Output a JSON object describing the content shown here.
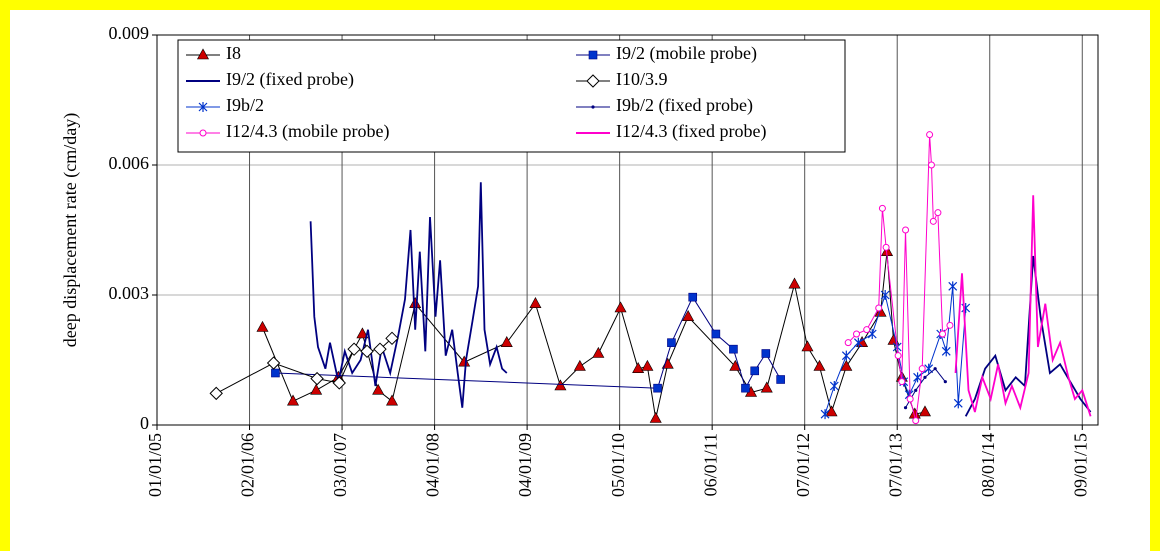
{
  "chart_data": {
    "type": "line",
    "y_label": "deep displacement rate (cm/day)",
    "xlim": [
      2005,
      2015.17
    ],
    "xticks": [
      {
        "value": 2005,
        "label": "01/01/05"
      },
      {
        "value": 2006,
        "label": "02/01/06"
      },
      {
        "value": 2007,
        "label": "03/01/07"
      },
      {
        "value": 2008,
        "label": "04/01/08"
      },
      {
        "value": 2009,
        "label": "04/01/09"
      },
      {
        "value": 2010,
        "label": "05/01/10"
      },
      {
        "value": 2011,
        "label": "06/01/11"
      },
      {
        "value": 2012,
        "label": "07/01/12"
      },
      {
        "value": 2013,
        "label": "07/01/13"
      },
      {
        "value": 2014,
        "label": "08/01/14"
      },
      {
        "value": 2015,
        "label": "09/01/15"
      }
    ],
    "ylim": [
      0,
      0.009
    ],
    "yticks": [
      0,
      0.003,
      0.006,
      0.009
    ],
    "grid": true,
    "legend": "top-left",
    "series": [
      {
        "name": "I8",
        "color": "#cc0000",
        "line_color": "#000000",
        "marker": "triangle",
        "x": [
          2006.14,
          2006.47,
          2006.72,
          2006.96,
          2007.22,
          2007.39,
          2007.54,
          2007.79,
          2008.32,
          2008.78,
          2009.09,
          2009.36,
          2009.57,
          2009.77,
          2010.01,
          2010.2,
          2010.3,
          2010.39,
          2010.52,
          2010.74,
          2011.25,
          2011.42,
          2011.59,
          2011.89,
          2012.03,
          2012.16,
          2012.29,
          2012.45,
          2012.62,
          2012.82,
          2012.89,
          2012.96,
          2013.05,
          2013.19,
          2013.3
        ],
        "values": [
          0.00225,
          0.00055,
          0.0008,
          0.0011,
          0.0021,
          0.0008,
          0.00055,
          0.0028,
          0.00145,
          0.0019,
          0.0028,
          0.0009,
          0.00135,
          0.00165,
          0.0027,
          0.0013,
          0.00135,
          0.00015,
          0.0014,
          0.0025,
          0.00135,
          0.00075,
          0.00085,
          0.00325,
          0.0018,
          0.00135,
          0.0003,
          0.00135,
          0.0019,
          0.0026,
          0.004,
          0.00195,
          0.0011,
          0.00025,
          0.0003
        ]
      },
      {
        "name": "I9/2 (mobile probe)",
        "color": "#0033cc",
        "line_color": "#000080",
        "marker": "square",
        "x": [
          2006.28,
          2010.41,
          2010.56,
          2010.79,
          2011.04,
          2011.23,
          2011.36,
          2011.46,
          2011.58,
          2011.74
        ],
        "values": [
          0.0012,
          0.00085,
          0.0019,
          0.00295,
          0.0021,
          0.00175,
          0.00085,
          0.00125,
          0.00165,
          0.00105
        ]
      },
      {
        "name": "I9/2 (fixed probe)",
        "color": "#000080",
        "line_color": "#000080",
        "marker": "none",
        "x": [
          2006.66,
          2006.7,
          2006.74,
          2006.82,
          2006.87,
          2006.96,
          2007.03,
          2007.11,
          2007.2,
          2007.28,
          2007.36,
          2007.43,
          2007.52,
          2007.61,
          2007.68,
          2007.74,
          2007.79,
          2007.84,
          2007.9,
          2007.95,
          2008.01,
          2008.06,
          2008.12,
          2008.19,
          2008.25,
          2008.3,
          2008.34,
          2008.41,
          2008.47,
          2008.5,
          2008.54,
          2008.6,
          2008.67,
          2008.73,
          2008.78,
          2010.0,
          2013.74,
          2013.84,
          2013.95,
          2014.06,
          2014.17,
          2014.28,
          2014.38,
          2014.47,
          2014.55,
          2014.65,
          2014.76,
          2014.87,
          2014.98,
          2015.09
        ],
        "values": [
          0.0047,
          0.0025,
          0.0018,
          0.0013,
          0.0019,
          0.001,
          0.0017,
          0.0012,
          0.0015,
          0.0022,
          0.0009,
          0.0018,
          0.0012,
          0.0021,
          0.0029,
          0.0045,
          0.0022,
          0.004,
          0.0017,
          0.0048,
          0.0025,
          0.0038,
          0.0016,
          0.0022,
          0.0012,
          0.0004,
          0.0015,
          0.0024,
          0.0032,
          0.0056,
          0.0022,
          0.0014,
          0.0018,
          0.0013,
          0.0012,
          null,
          0.0002,
          0.0006,
          0.0013,
          0.0016,
          0.0008,
          0.0011,
          0.0009,
          0.0039,
          0.0025,
          0.0012,
          0.0014,
          0.001,
          0.0006,
          0.0003
        ]
      },
      {
        "name": "I10/3.9",
        "color": "#ffffff",
        "line_color": "#000000",
        "marker": "diamond",
        "x": [
          2005.64,
          2006.26,
          2006.73,
          2006.97,
          2007.13,
          2007.27,
          2007.41,
          2007.54
        ],
        "values": [
          0.00073,
          0.00143,
          0.00107,
          0.00097,
          0.00175,
          0.0017,
          0.00175,
          0.002
        ]
      },
      {
        "name": "I9b/2",
        "color": "#0033cc",
        "line_color": "#0033cc",
        "marker": "star",
        "x": [
          2012.22,
          2012.32,
          2012.45,
          2012.58,
          2012.73,
          2012.87,
          2013.0,
          2013.07,
          2013.13,
          2013.22,
          2013.34,
          2013.47,
          2013.53,
          2013.6,
          2013.66,
          2013.74
        ],
        "values": [
          0.00025,
          0.0009,
          0.0016,
          0.0019,
          0.0021,
          0.003,
          0.0018,
          0.001,
          0.0007,
          0.0011,
          0.0013,
          0.0021,
          0.0017,
          0.0032,
          0.0005,
          0.0027
        ]
      },
      {
        "name": "I9b/2 (fixed probe)",
        "color": "#000080",
        "line_color": "#000080",
        "marker": "dot",
        "x": [
          2013.09,
          2013.2,
          2013.3,
          2013.41,
          2013.52
        ],
        "values": [
          0.0004,
          0.0008,
          0.0011,
          0.0013,
          0.001
        ]
      },
      {
        "name": "I12/4.3 (mobile probe)",
        "color": "#ff00cc",
        "line_color": "#ff00cc",
        "marker": "circle",
        "x": [
          2012.47,
          2012.56,
          2012.67,
          2012.8,
          2012.84,
          2012.88,
          2013.01,
          2013.05,
          2013.09,
          2013.14,
          2013.2,
          2013.27,
          2013.35,
          2013.37,
          2013.39,
          2013.44,
          2013.49,
          2013.57
        ],
        "values": [
          0.0019,
          0.0021,
          0.0022,
          0.0027,
          0.005,
          0.0041,
          0.0016,
          0.001,
          0.0045,
          0.0006,
          0.0001,
          0.0013,
          0.0067,
          0.006,
          0.0047,
          0.0049,
          0.0021,
          0.0023
        ]
      },
      {
        "name": "I12/4.3 (fixed probe)",
        "color": "#ff00cc",
        "line_color": "#ff00cc",
        "marker": "none",
        "x": [
          2013.63,
          2013.7,
          2013.77,
          2013.84,
          2013.92,
          2014.01,
          2014.09,
          2014.17,
          2014.24,
          2014.33,
          2014.42,
          2014.47,
          2014.52,
          2014.6,
          2014.68,
          2014.76,
          2014.85,
          2014.92,
          2015.0,
          2015.09
        ],
        "values": [
          0.0012,
          0.0035,
          0.0008,
          0.0003,
          0.0011,
          0.0006,
          0.0014,
          0.0005,
          0.0009,
          0.0004,
          0.0012,
          0.0053,
          0.0018,
          0.0028,
          0.0015,
          0.0019,
          0.0011,
          0.0006,
          0.0008,
          0.0002
        ]
      }
    ]
  }
}
